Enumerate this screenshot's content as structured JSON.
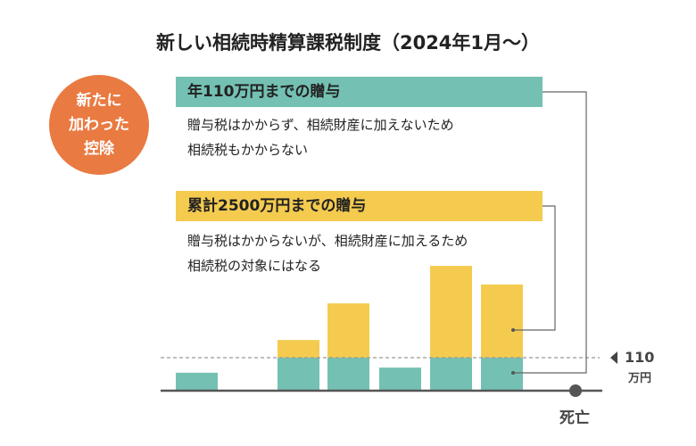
{
  "title": "新しい相続時精算課税制度（2024年1月〜）",
  "badge": {
    "lines": [
      "新たに",
      "加わった",
      "控除"
    ],
    "color": "#e97a42"
  },
  "annual_gift": {
    "heading": "年110万円までの贈与",
    "lines": [
      "贈与税はかからず、相続財産に加えないため",
      "相続税もかからない"
    ],
    "color": "#74c1b3"
  },
  "cumulative_gift": {
    "heading": "累計2500万円までの贈与",
    "lines": [
      "贈与税はかからないが、相続財産に加えるため",
      "相続税の対象にはなる"
    ],
    "color": "#f4cb4f"
  },
  "chart_data": {
    "type": "bar",
    "threshold": {
      "value": 110,
      "label": "110",
      "unit": "万円"
    },
    "end_label": "死亡",
    "series": [
      {
        "name": "年110万円までの贈与",
        "values": [
          60,
          0,
          110,
          110,
          77,
          110,
          110
        ]
      },
      {
        "name": "累計2500万円までの贈与",
        "values": [
          0,
          0,
          59,
          181,
          0,
          306,
          244
        ]
      }
    ],
    "ymax": 420
  }
}
